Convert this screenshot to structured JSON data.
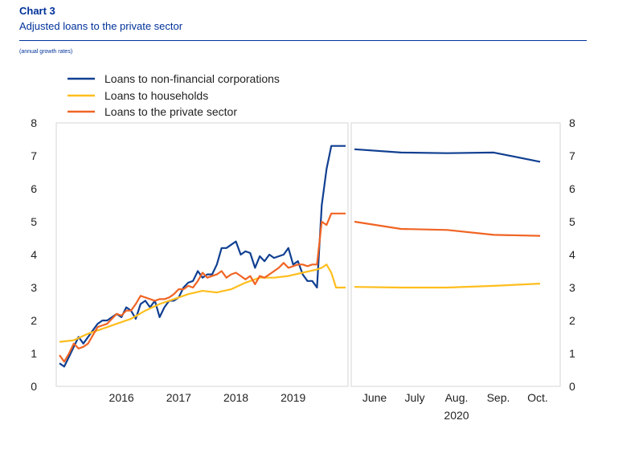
{
  "header": {
    "chart_number": "Chart 3",
    "title": "Adjusted loans to the private sector",
    "units": "(annual growth rates)"
  },
  "colors": {
    "nfc": "#103f91",
    "households": "#ffbe1e",
    "private": "#f06424",
    "accent": "#003299"
  },
  "chart_data": [
    {
      "type": "line",
      "title": "",
      "xlabel": "",
      "ylabel": "",
      "ylim": [
        0,
        8
      ],
      "yticks": [
        "0",
        "1",
        "2",
        "3",
        "4",
        "5",
        "6",
        "7",
        "8"
      ],
      "xticks": [
        "2016",
        "2017",
        "2018",
        "2019"
      ],
      "x_range": [
        "2015-06",
        "2020-06"
      ],
      "grid": false,
      "legend_position": "top-left",
      "series": [
        {
          "name": "Loans to non-financial corporations",
          "color_key": "nfc",
          "x": [
            "2015-06",
            "2015-07",
            "2015-08",
            "2015-09",
            "2015-10",
            "2015-11",
            "2015-12",
            "2016-01",
            "2016-02",
            "2016-03",
            "2016-04",
            "2016-05",
            "2016-06",
            "2016-07",
            "2016-08",
            "2016-09",
            "2016-10",
            "2016-11",
            "2016-12",
            "2017-01",
            "2017-02",
            "2017-03",
            "2017-04",
            "2017-05",
            "2017-06",
            "2017-07",
            "2017-08",
            "2017-09",
            "2017-10",
            "2017-11",
            "2017-12",
            "2018-01",
            "2018-02",
            "2018-03",
            "2018-04",
            "2018-05",
            "2018-06",
            "2018-07",
            "2018-08",
            "2018-09",
            "2018-10",
            "2018-11",
            "2018-12",
            "2019-01",
            "2019-02",
            "2019-03",
            "2019-04",
            "2019-05",
            "2019-06",
            "2019-07",
            "2019-08",
            "2019-09",
            "2019-10",
            "2019-11",
            "2019-12",
            "2020-01",
            "2020-02",
            "2020-03",
            "2020-04",
            "2020-05",
            "2020-06"
          ],
          "values": [
            0.7,
            0.6,
            0.9,
            1.2,
            1.5,
            1.3,
            1.5,
            1.7,
            1.9,
            2.0,
            2.0,
            2.1,
            2.2,
            2.1,
            2.4,
            2.3,
            2.05,
            2.5,
            2.6,
            2.4,
            2.6,
            2.1,
            2.4,
            2.6,
            2.6,
            2.7,
            3.0,
            3.15,
            3.2,
            3.5,
            3.3,
            3.4,
            3.4,
            3.7,
            4.2,
            4.2,
            4.3,
            4.4,
            4.0,
            4.1,
            4.05,
            3.6,
            3.95,
            3.8,
            4.0,
            3.9,
            3.95,
            4.0,
            4.2,
            3.7,
            3.8,
            3.4,
            3.2,
            3.2,
            3.0,
            5.5,
            6.6,
            7.3,
            7.3,
            7.3,
            7.3
          ]
        },
        {
          "name": "Loans to households",
          "color_key": "households",
          "x": [
            "2015-06",
            "2015-09",
            "2015-12",
            "2016-03",
            "2016-06",
            "2016-09",
            "2016-12",
            "2017-03",
            "2017-06",
            "2017-09",
            "2017-12",
            "2018-03",
            "2018-06",
            "2018-09",
            "2018-12",
            "2019-03",
            "2019-06",
            "2019-09",
            "2019-12",
            "2020-01",
            "2020-02",
            "2020-03",
            "2020-04",
            "2020-05",
            "2020-06"
          ],
          "values": [
            1.35,
            1.4,
            1.6,
            1.75,
            1.9,
            2.05,
            2.3,
            2.5,
            2.65,
            2.8,
            2.9,
            2.85,
            2.95,
            3.15,
            3.3,
            3.3,
            3.35,
            3.45,
            3.55,
            3.6,
            3.7,
            3.45,
            3.0,
            3.0,
            3.0
          ]
        },
        {
          "name": "Loans to the private sector",
          "color_key": "private",
          "x": [
            "2015-06",
            "2015-07",
            "2015-08",
            "2015-09",
            "2015-10",
            "2015-11",
            "2015-12",
            "2016-01",
            "2016-02",
            "2016-03",
            "2016-04",
            "2016-05",
            "2016-06",
            "2016-07",
            "2016-08",
            "2016-09",
            "2016-10",
            "2016-11",
            "2016-12",
            "2017-01",
            "2017-02",
            "2017-03",
            "2017-04",
            "2017-05",
            "2017-06",
            "2017-07",
            "2017-08",
            "2017-09",
            "2017-10",
            "2017-11",
            "2017-12",
            "2018-01",
            "2018-02",
            "2018-03",
            "2018-04",
            "2018-05",
            "2018-06",
            "2018-07",
            "2018-08",
            "2018-09",
            "2018-10",
            "2018-11",
            "2018-12",
            "2019-01",
            "2019-02",
            "2019-03",
            "2019-04",
            "2019-05",
            "2019-06",
            "2019-07",
            "2019-08",
            "2019-09",
            "2019-10",
            "2019-11",
            "2019-12",
            "2020-01",
            "2020-02",
            "2020-03",
            "2020-04",
            "2020-05",
            "2020-06"
          ],
          "values": [
            0.95,
            0.75,
            1.0,
            1.3,
            1.15,
            1.2,
            1.3,
            1.55,
            1.8,
            1.85,
            1.9,
            2.05,
            2.2,
            2.15,
            2.3,
            2.3,
            2.5,
            2.75,
            2.7,
            2.65,
            2.6,
            2.65,
            2.65,
            2.7,
            2.8,
            2.95,
            2.95,
            3.05,
            3.0,
            3.2,
            3.45,
            3.3,
            3.35,
            3.4,
            3.5,
            3.3,
            3.4,
            3.45,
            3.35,
            3.25,
            3.35,
            3.1,
            3.35,
            3.3,
            3.4,
            3.5,
            3.6,
            3.75,
            3.6,
            3.65,
            3.7,
            3.7,
            3.65,
            3.7,
            3.7,
            5.0,
            4.9,
            5.25,
            5.25,
            5.25,
            5.25
          ]
        }
      ]
    },
    {
      "type": "line",
      "title": "",
      "ylim": [
        0,
        8
      ],
      "yticks": [
        "0",
        "1",
        "2",
        "3",
        "4",
        "5",
        "6",
        "7",
        "8"
      ],
      "categories": [
        "June",
        "July",
        "Aug.",
        "Sep.",
        "Oct."
      ],
      "xlabel": "2020",
      "grid": false,
      "series": [
        {
          "color_key": "nfc",
          "values": [
            7.2,
            7.1,
            7.08,
            7.1,
            6.82
          ]
        },
        {
          "color_key": "households",
          "values": [
            3.02,
            3.0,
            3.0,
            3.05,
            3.12
          ]
        },
        {
          "color_key": "private",
          "values": [
            5.0,
            4.78,
            4.75,
            4.6,
            4.57
          ]
        }
      ]
    }
  ]
}
